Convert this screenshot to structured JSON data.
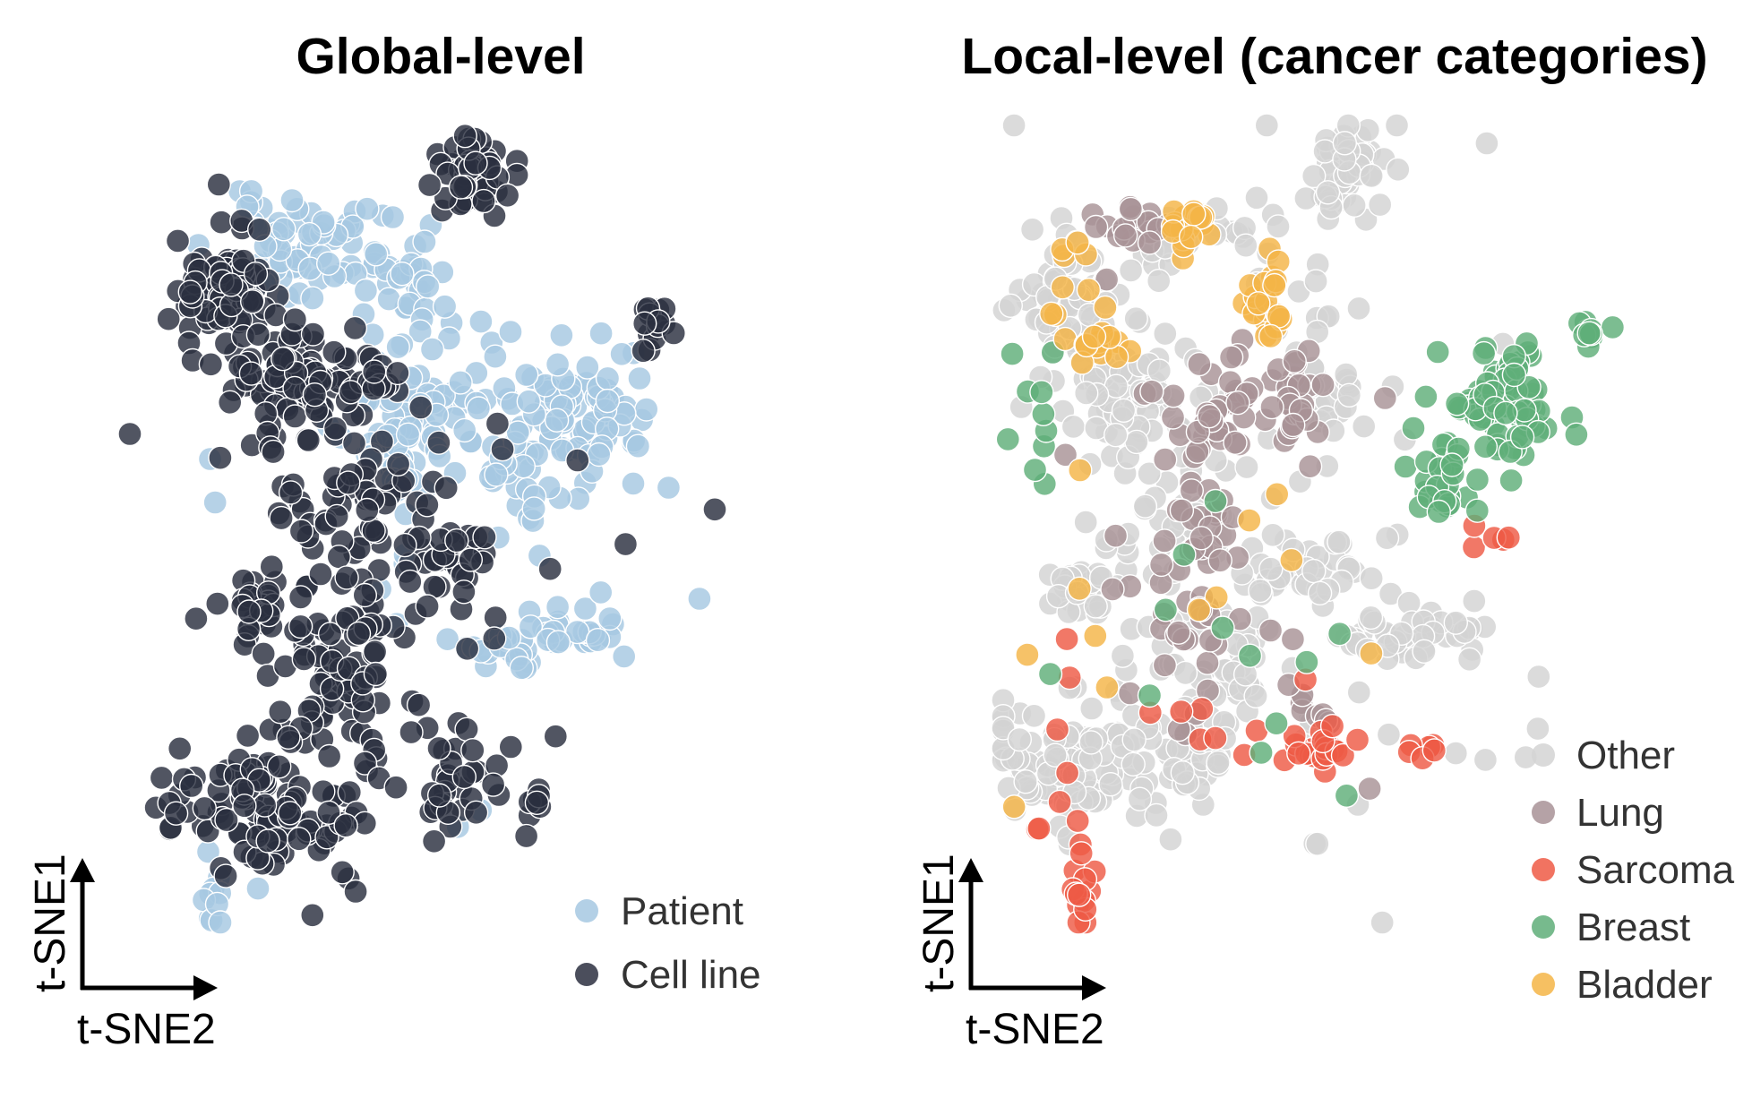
{
  "colors": {
    "patient": "#a6c8e2",
    "cell_line": "#2b2f3f",
    "other": "#d3d3d3",
    "lung": "#a89296",
    "sarcoma": "#ee5a45",
    "breast": "#5fae79",
    "bladder": "#f4b547",
    "arrow": "#000000"
  },
  "chart_data": [
    {
      "type": "scatter",
      "title": "Global-level",
      "xlabel": "t-SNE2",
      "ylabel": "t-SNE1",
      "legend_position": "bottom-right",
      "grid": false,
      "series": [
        {
          "name": "Patient",
          "color_key": "patient",
          "clusters": [
            {
              "cx": 30,
              "cy": 86,
              "sx": 8,
              "sy": 3,
              "n": 70
            },
            {
              "cx": 44,
              "cy": 79,
              "sx": 3,
              "sy": 3,
              "n": 25
            },
            {
              "cx": 50,
              "cy": 66,
              "sx": 4,
              "sy": 5,
              "n": 45
            },
            {
              "cx": 41,
              "cy": 62,
              "sx": 3,
              "sy": 4,
              "n": 35
            },
            {
              "cx": 73,
              "cy": 64,
              "sx": 5,
              "sy": 5,
              "n": 80
            },
            {
              "cx": 63,
              "cy": 57,
              "sx": 3,
              "sy": 4,
              "n": 25
            },
            {
              "cx": 64,
              "cy": 35,
              "sx": 6,
              "sy": 2,
              "n": 30
            },
            {
              "cx": 72,
              "cy": 37,
              "sx": 4,
              "sy": 1.5,
              "n": 18
            },
            {
              "cx": 13,
              "cy": 3,
              "sx": 1,
              "sy": 2,
              "n": 10
            },
            {
              "cx": 50,
              "cy": 45,
              "sx": 18,
              "sy": 22,
              "n": 25
            }
          ]
        },
        {
          "name": "Cell line",
          "color_key": "cell_line",
          "clusters": [
            {
              "cx": 55,
              "cy": 96,
              "sx": 3,
              "sy": 2.5,
              "n": 45
            },
            {
              "cx": 16,
              "cy": 81,
              "sx": 4,
              "sy": 4,
              "n": 80
            },
            {
              "cx": 27,
              "cy": 69,
              "sx": 6,
              "sy": 4,
              "n": 90
            },
            {
              "cx": 40,
              "cy": 69,
              "sx": 2,
              "sy": 1.5,
              "n": 15
            },
            {
              "cx": 85,
              "cy": 76,
              "sx": 1.5,
              "sy": 1.5,
              "n": 15
            },
            {
              "cx": 36,
              "cy": 53,
              "sx": 6,
              "sy": 4,
              "n": 50
            },
            {
              "cx": 52,
              "cy": 46,
              "sx": 3,
              "sy": 2,
              "n": 25
            },
            {
              "cx": 21,
              "cy": 40,
              "sx": 2,
              "sy": 2,
              "n": 25
            },
            {
              "cx": 35,
              "cy": 33,
              "sx": 5,
              "sy": 7,
              "n": 80
            },
            {
              "cx": 20,
              "cy": 15,
              "sx": 9,
              "sy": 4,
              "n": 110
            },
            {
              "cx": 52,
              "cy": 18,
              "sx": 4,
              "sy": 3,
              "n": 30
            },
            {
              "cx": 66,
              "cy": 16,
              "sx": 1,
              "sy": 1,
              "n": 8
            },
            {
              "cx": 45,
              "cy": 45,
              "sx": 18,
              "sy": 22,
              "n": 45
            }
          ]
        }
      ]
    },
    {
      "type": "scatter",
      "title": "Local-level (cancer categories)",
      "xlabel": "t-SNE2",
      "ylabel": "t-SNE1",
      "legend_position": "bottom-right",
      "grid": false,
      "series": [
        {
          "name": "Other",
          "color_key": "other",
          "clusters": [
            {
              "cx": 30,
              "cy": 86,
              "sx": 8,
              "sy": 3,
              "n": 30
            },
            {
              "cx": 10,
              "cy": 78,
              "sx": 4,
              "sy": 4,
              "n": 70
            },
            {
              "cx": 22,
              "cy": 66,
              "sx": 6,
              "sy": 4,
              "n": 70
            },
            {
              "cx": 55,
              "cy": 95,
              "sx": 3,
              "sy": 3,
              "n": 50
            },
            {
              "cx": 50,
              "cy": 68,
              "sx": 4,
              "sy": 5,
              "n": 30
            },
            {
              "cx": 12,
              "cy": 42,
              "sx": 3,
              "sy": 2,
              "n": 30
            },
            {
              "cx": 30,
              "cy": 50,
              "sx": 7,
              "sy": 4,
              "n": 40
            },
            {
              "cx": 48,
              "cy": 44,
              "sx": 5,
              "sy": 2,
              "n": 30
            },
            {
              "cx": 65,
              "cy": 36,
              "sx": 6,
              "sy": 2,
              "n": 45
            },
            {
              "cx": 14,
              "cy": 20,
              "sx": 10,
              "sy": 4,
              "n": 120
            },
            {
              "cx": 33,
              "cy": 30,
              "sx": 7,
              "sy": 6,
              "n": 60
            },
            {
              "cx": 45,
              "cy": 50,
              "sx": 20,
              "sy": 25,
              "n": 40
            }
          ]
        },
        {
          "name": "Lung",
          "color_key": "lung",
          "clusters": [
            {
              "cx": 21,
              "cy": 87,
              "sx": 3,
              "sy": 2,
              "n": 20
            },
            {
              "cx": 38,
              "cy": 68,
              "sx": 2,
              "sy": 2,
              "n": 15
            },
            {
              "cx": 46,
              "cy": 64,
              "sx": 2.5,
              "sy": 3,
              "n": 25
            },
            {
              "cx": 34,
              "cy": 61,
              "sx": 3,
              "sy": 2,
              "n": 20
            },
            {
              "cx": 32,
              "cy": 50,
              "sx": 3,
              "sy": 3,
              "n": 20
            },
            {
              "cx": 30,
              "cy": 35,
              "sx": 4,
              "sy": 5,
              "n": 25
            },
            {
              "cx": 50,
              "cy": 27,
              "sx": 2,
              "sy": 2,
              "n": 8
            },
            {
              "cx": 35,
              "cy": 50,
              "sx": 18,
              "sy": 20,
              "n": 15
            }
          ]
        },
        {
          "name": "Sarcoma",
          "color_key": "sarcoma",
          "clusters": [
            {
              "cx": 13,
              "cy": 3,
              "sx": 1.2,
              "sy": 2.5,
              "n": 14
            },
            {
              "cx": 50,
              "cy": 22,
              "sx": 3,
              "sy": 1.5,
              "n": 20
            },
            {
              "cx": 67,
              "cy": 22,
              "sx": 1.5,
              "sy": 1,
              "n": 6
            },
            {
              "cx": 10,
              "cy": 17,
              "sx": 4,
              "sy": 6,
              "n": 8
            },
            {
              "cx": 77,
              "cy": 50,
              "sx": 2,
              "sy": 2,
              "n": 5
            },
            {
              "cx": 40,
              "cy": 25,
              "sx": 14,
              "sy": 5,
              "n": 8
            }
          ]
        },
        {
          "name": "Breast",
          "color_key": "breast",
          "clusters": [
            {
              "cx": 80,
              "cy": 65,
              "sx": 4.5,
              "sy": 4,
              "n": 85
            },
            {
              "cx": 70,
              "cy": 56,
              "sx": 3,
              "sy": 3,
              "n": 25
            },
            {
              "cx": 94,
              "cy": 74,
              "sx": 1.5,
              "sy": 1.5,
              "n": 10
            },
            {
              "cx": 7,
              "cy": 62,
              "sx": 3,
              "sy": 8,
              "n": 10
            },
            {
              "cx": 40,
              "cy": 40,
              "sx": 20,
              "sy": 15,
              "n": 12
            }
          ]
        },
        {
          "name": "Bladder",
          "color_key": "bladder",
          "clusters": [
            {
              "cx": 30,
              "cy": 88,
              "sx": 2.5,
              "sy": 1.5,
              "n": 20
            },
            {
              "cx": 42,
              "cy": 78,
              "sx": 1.5,
              "sy": 3,
              "n": 22
            },
            {
              "cx": 16,
              "cy": 73,
              "sx": 2,
              "sy": 2,
              "n": 15
            },
            {
              "cx": 10,
              "cy": 82,
              "sx": 2,
              "sy": 3,
              "n": 8
            },
            {
              "cx": 30,
              "cy": 40,
              "sx": 15,
              "sy": 15,
              "n": 12
            }
          ]
        }
      ]
    }
  ]
}
